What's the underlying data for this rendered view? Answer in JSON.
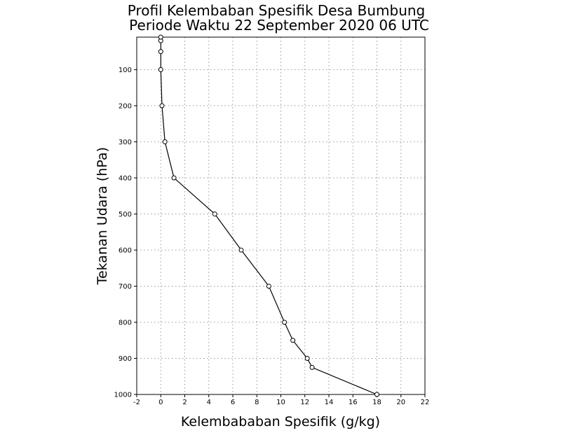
{
  "chart_data": {
    "type": "line",
    "title": "Profil Kelembaban Spesifik Desa Bumbung",
    "subtitle": "Periode Waktu 22 September 2020 06 UTC",
    "xlabel": "Kelembababan Spesifik (g/kg)",
    "ylabel": "Tekanan Udara (hPa)",
    "xlim": [
      -2,
      22
    ],
    "ylim": [
      1000,
      10
    ],
    "y_inverted": true,
    "grid": true,
    "x_ticks": [
      "-2",
      "0",
      "2",
      "4",
      "6",
      "8",
      "10",
      "12",
      "14",
      "16",
      "18",
      "20",
      "22"
    ],
    "y_ticks": [
      "100",
      "200",
      "300",
      "400",
      "500",
      "600",
      "700",
      "800",
      "900",
      "1000"
    ],
    "colors": {
      "line": "#000000",
      "grid": "#999999",
      "marker_fill": "#ffffff"
    },
    "series": [
      {
        "x": [
          18.0,
          12.6,
          12.2,
          11.0,
          10.3,
          9.0,
          6.7,
          4.5,
          1.1,
          0.35,
          0.1,
          0.0,
          0.0,
          0.0,
          0.0
        ],
        "y": [
          1000,
          925,
          900,
          850,
          800,
          700,
          600,
          500,
          400,
          300,
          200,
          100,
          50,
          20,
          10
        ]
      }
    ]
  }
}
